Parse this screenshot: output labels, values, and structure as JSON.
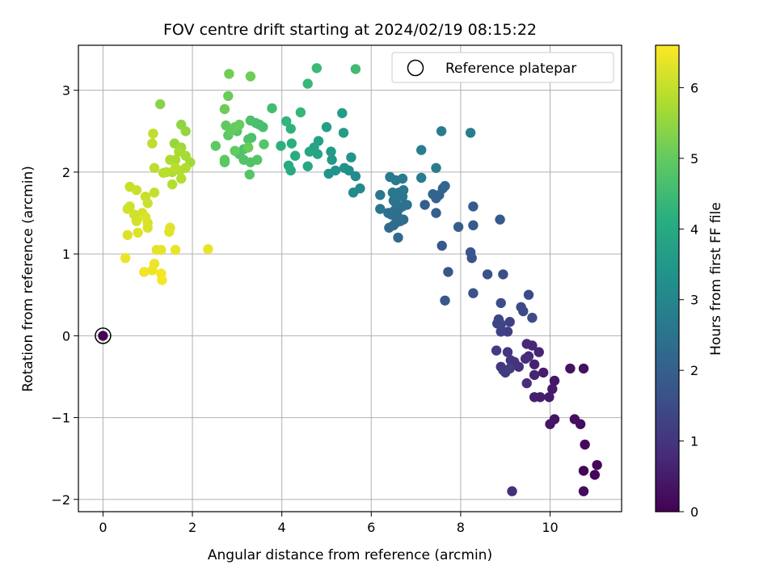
{
  "chart_data": {
    "type": "scatter",
    "title": "FOV centre drift starting at 2024/02/19 08:15:22",
    "xlabel": "Angular distance from reference (arcmin)",
    "ylabel": "Rotation from reference (arcmin)",
    "xlim": [
      -0.55,
      11.6
    ],
    "ylim": [
      -2.15,
      3.55
    ],
    "xticks": [
      "0",
      "2",
      "4",
      "6",
      "8",
      "10"
    ],
    "yticks": [
      "−2",
      "−1",
      "0",
      "1",
      "2",
      "3"
    ],
    "grid": true,
    "legend": {
      "label": "Reference platepar",
      "placement": "top-right"
    },
    "colorbar": {
      "label": "Hours from first FF file",
      "min": 0,
      "max": 6.6,
      "ticks": [
        "0",
        "1",
        "2",
        "3",
        "4",
        "5",
        "6"
      ],
      "colormap": "viridis"
    },
    "reference_point": {
      "x": 0,
      "y": 0
    },
    "points": [
      [
        0,
        0,
        0.0
      ],
      [
        10.75,
        -1.65,
        0.08
      ],
      [
        11.05,
        -1.58,
        0.1
      ],
      [
        11.0,
        -1.7,
        0.12
      ],
      [
        10.78,
        -1.33,
        0.15
      ],
      [
        10.75,
        -1.9,
        0.18
      ],
      [
        10.68,
        -1.08,
        0.22
      ],
      [
        10.55,
        -1.02,
        0.25
      ],
      [
        10.75,
        -0.4,
        0.28
      ],
      [
        10.45,
        -0.4,
        0.32
      ],
      [
        10.1,
        -1.02,
        0.35
      ],
      [
        10.0,
        -1.08,
        0.38
      ],
      [
        10.1,
        -0.55,
        0.42
      ],
      [
        10.05,
        -0.65,
        0.45
      ],
      [
        9.98,
        -0.75,
        0.48
      ],
      [
        9.85,
        -0.45,
        0.52
      ],
      [
        9.78,
        -0.75,
        0.55
      ],
      [
        9.65,
        -0.75,
        0.58
      ],
      [
        9.65,
        -0.35,
        0.62
      ],
      [
        9.65,
        -0.48,
        0.65
      ],
      [
        9.75,
        -0.2,
        0.68
      ],
      [
        9.6,
        -0.12,
        0.72
      ],
      [
        9.48,
        -0.1,
        0.75
      ],
      [
        9.52,
        -0.25,
        0.78
      ],
      [
        9.45,
        -0.28,
        0.82
      ],
      [
        9.48,
        -0.58,
        0.85
      ],
      [
        9.15,
        -1.9,
        0.88
      ],
      [
        9.3,
        -0.38,
        0.92
      ],
      [
        9.2,
        -0.32,
        0.95
      ],
      [
        9.12,
        -0.3,
        0.98
      ],
      [
        9.05,
        -0.2,
        1.02
      ],
      [
        8.9,
        -0.38,
        1.05
      ],
      [
        8.95,
        -0.42,
        1.08
      ],
      [
        9.0,
        -0.45,
        1.12
      ],
      [
        9.1,
        -0.4,
        1.15
      ],
      [
        8.8,
        -0.18,
        1.18
      ],
      [
        9.05,
        0.05,
        1.22
      ],
      [
        9.1,
        0.17,
        1.25
      ],
      [
        8.9,
        0.05,
        1.28
      ],
      [
        8.82,
        0.15,
        1.32
      ],
      [
        8.85,
        0.2,
        1.35
      ],
      [
        8.9,
        0.14,
        1.38
      ],
      [
        9.4,
        0.3,
        1.42
      ],
      [
        9.35,
        0.35,
        1.45
      ],
      [
        9.52,
        0.5,
        1.48
      ],
      [
        9.6,
        0.22,
        1.52
      ],
      [
        8.9,
        0.4,
        1.55
      ],
      [
        8.95,
        0.75,
        1.58
      ],
      [
        8.6,
        0.75,
        1.62
      ],
      [
        8.28,
        0.52,
        1.65
      ],
      [
        8.25,
        0.95,
        1.68
      ],
      [
        8.22,
        1.02,
        1.72
      ],
      [
        7.72,
        0.78,
        1.75
      ],
      [
        7.65,
        0.43,
        1.78
      ],
      [
        7.58,
        1.1,
        1.82
      ],
      [
        8.88,
        1.42,
        1.85
      ],
      [
        8.28,
        1.35,
        1.88
      ],
      [
        8.28,
        1.58,
        1.92
      ],
      [
        7.95,
        1.33,
        1.95
      ],
      [
        7.45,
        1.5,
        1.98
      ],
      [
        7.2,
        1.6,
        2.02
      ],
      [
        7.45,
        1.68,
        2.05
      ],
      [
        7.52,
        1.72,
        2.08
      ],
      [
        7.38,
        1.73,
        2.12
      ],
      [
        7.6,
        1.8,
        2.15
      ],
      [
        7.65,
        1.83,
        2.18
      ],
      [
        6.6,
        1.2,
        2.22
      ],
      [
        6.4,
        1.32,
        2.25
      ],
      [
        6.5,
        1.35,
        2.28
      ],
      [
        6.55,
        1.38,
        2.3
      ],
      [
        6.65,
        1.4,
        2.32
      ],
      [
        6.72,
        1.42,
        2.34
      ],
      [
        6.6,
        1.45,
        2.36
      ],
      [
        6.45,
        1.48,
        2.38
      ],
      [
        6.38,
        1.5,
        2.4
      ],
      [
        6.5,
        1.52,
        2.42
      ],
      [
        6.62,
        1.55,
        2.44
      ],
      [
        6.7,
        1.58,
        2.46
      ],
      [
        6.8,
        1.6,
        2.48
      ],
      [
        6.55,
        1.62,
        2.5
      ],
      [
        6.2,
        1.55,
        2.52
      ],
      [
        6.5,
        1.65,
        2.54
      ],
      [
        6.7,
        1.7,
        2.56
      ],
      [
        6.62,
        1.75,
        2.58
      ],
      [
        6.48,
        1.75,
        2.6
      ],
      [
        6.72,
        1.78,
        2.62
      ],
      [
        6.2,
        1.72,
        2.64
      ],
      [
        6.55,
        1.9,
        2.66
      ],
      [
        6.42,
        1.94,
        2.68
      ],
      [
        6.7,
        1.92,
        2.7
      ],
      [
        7.12,
        1.93,
        2.72
      ],
      [
        7.45,
        2.05,
        2.74
      ],
      [
        7.12,
        2.27,
        2.76
      ],
      [
        7.57,
        2.5,
        2.78
      ],
      [
        8.22,
        2.48,
        2.8
      ],
      [
        5.75,
        1.8,
        3.1
      ],
      [
        5.6,
        1.75,
        3.15
      ],
      [
        5.65,
        1.95,
        3.2
      ],
      [
        5.5,
        2.02,
        3.25
      ],
      [
        5.4,
        2.05,
        3.3
      ],
      [
        5.2,
        2.02,
        3.35
      ],
      [
        5.05,
        1.98,
        3.4
      ],
      [
        5.55,
        2.18,
        3.45
      ],
      [
        5.12,
        2.15,
        3.5
      ],
      [
        5.1,
        2.25,
        3.55
      ],
      [
        5.38,
        2.48,
        3.6
      ],
      [
        5.35,
        2.72,
        3.65
      ],
      [
        5.0,
        2.55,
        3.7
      ],
      [
        4.82,
        2.38,
        3.75
      ],
      [
        4.72,
        2.3,
        3.8
      ],
      [
        4.8,
        2.22,
        3.85
      ],
      [
        4.62,
        2.25,
        3.9
      ],
      [
        4.58,
        2.07,
        3.95
      ],
      [
        4.2,
        2.02,
        4.0
      ],
      [
        4.15,
        2.08,
        4.05
      ],
      [
        4.3,
        2.2,
        4.1
      ],
      [
        4.22,
        2.35,
        4.15
      ],
      [
        3.98,
        2.32,
        4.2
      ],
      [
        4.2,
        2.53,
        4.25
      ],
      [
        4.1,
        2.62,
        4.3
      ],
      [
        4.42,
        2.73,
        4.35
      ],
      [
        4.58,
        3.08,
        4.4
      ],
      [
        4.78,
        3.27,
        4.45
      ],
      [
        5.65,
        3.26,
        4.5
      ],
      [
        3.78,
        2.78,
        4.55
      ],
      [
        3.58,
        2.55,
        4.6
      ],
      [
        3.5,
        2.58,
        4.62
      ],
      [
        3.42,
        2.6,
        4.64
      ],
      [
        3.3,
        2.63,
        4.66
      ],
      [
        3.32,
        2.42,
        4.68
      ],
      [
        3.25,
        2.4,
        4.7
      ],
      [
        3.15,
        2.28,
        4.72
      ],
      [
        3.05,
        2.22,
        4.74
      ],
      [
        3.15,
        2.15,
        4.76
      ],
      [
        3.3,
        2.12,
        4.78
      ],
      [
        3.45,
        2.15,
        4.8
      ],
      [
        3.6,
        2.34,
        4.82
      ],
      [
        3.28,
        1.97,
        4.84
      ],
      [
        3.0,
        2.5,
        4.86
      ],
      [
        2.8,
        2.45,
        4.88
      ],
      [
        2.72,
        2.12,
        4.9
      ],
      [
        2.72,
        2.15,
        4.92
      ],
      [
        2.52,
        2.32,
        4.94
      ],
      [
        2.75,
        2.57,
        4.96
      ],
      [
        2.95,
        2.26,
        4.98
      ],
      [
        2.85,
        2.5,
        5.0
      ],
      [
        2.95,
        2.55,
        5.02
      ],
      [
        3.05,
        2.58,
        5.04
      ],
      [
        3.25,
        2.3,
        5.06
      ],
      [
        2.8,
        2.93,
        5.08
      ],
      [
        2.72,
        2.77,
        5.1
      ],
      [
        3.3,
        3.17,
        5.12
      ],
      [
        2.82,
        3.2,
        5.14
      ],
      [
        1.28,
        2.83,
        5.4
      ],
      [
        1.75,
        2.58,
        5.45
      ],
      [
        1.85,
        2.5,
        5.5
      ],
      [
        1.6,
        2.35,
        5.55
      ],
      [
        1.75,
        2.3,
        5.6
      ],
      [
        1.95,
        2.12,
        5.65
      ],
      [
        1.85,
        2.2,
        5.7
      ],
      [
        1.7,
        2.25,
        5.72
      ],
      [
        1.62,
        2.15,
        5.74
      ],
      [
        1.5,
        2.15,
        5.76
      ],
      [
        1.55,
        2.0,
        5.78
      ],
      [
        1.72,
        2.02,
        5.8
      ],
      [
        1.85,
        2.05,
        5.82
      ],
      [
        1.75,
        1.92,
        5.84
      ],
      [
        1.55,
        1.85,
        5.86
      ],
      [
        1.42,
        2.0,
        5.88
      ],
      [
        1.35,
        1.99,
        5.9
      ],
      [
        1.62,
        2.05,
        5.92
      ],
      [
        1.15,
        2.05,
        5.94
      ],
      [
        1.1,
        2.35,
        5.96
      ],
      [
        1.12,
        2.47,
        5.98
      ],
      [
        1.15,
        1.75,
        6.0
      ],
      [
        0.95,
        1.7,
        6.02
      ],
      [
        0.6,
        1.82,
        6.04
      ],
      [
        0.75,
        1.78,
        6.06
      ],
      [
        1.0,
        1.62,
        6.08
      ],
      [
        0.6,
        1.58,
        6.1
      ],
      [
        0.55,
        1.55,
        6.12
      ],
      [
        0.7,
        1.48,
        6.14
      ],
      [
        0.75,
        1.4,
        6.16
      ],
      [
        0.88,
        1.5,
        6.18
      ],
      [
        1.0,
        1.38,
        6.2
      ],
      [
        1.0,
        1.32,
        6.22
      ],
      [
        0.95,
        1.45,
        6.24
      ],
      [
        0.55,
        1.23,
        6.26
      ],
      [
        0.78,
        1.26,
        6.28
      ],
      [
        1.5,
        1.32,
        6.3
      ],
      [
        1.48,
        1.27,
        6.32
      ],
      [
        1.2,
        1.05,
        6.34
      ],
      [
        1.3,
        1.05,
        6.36
      ],
      [
        1.62,
        1.05,
        6.38
      ],
      [
        2.35,
        1.06,
        6.4
      ],
      [
        0.5,
        0.95,
        6.42
      ],
      [
        1.15,
        0.88,
        6.44
      ],
      [
        1.1,
        0.8,
        6.46
      ],
      [
        0.92,
        0.78,
        6.48
      ],
      [
        1.3,
        0.76,
        6.5
      ],
      [
        1.32,
        0.68,
        6.52
      ]
    ]
  }
}
